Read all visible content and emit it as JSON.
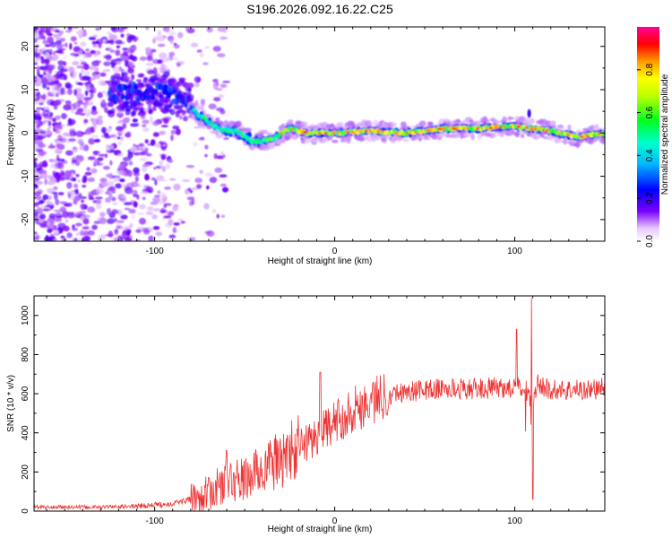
{
  "title": "S196.2026.092.16.22.C25",
  "chart_data": [
    {
      "type": "heatmap",
      "xlabel": "Height of straight line (km)",
      "ylabel": "Frequency (Hz)",
      "xlim": [
        -167,
        150
      ],
      "ylim": [
        -25,
        24.5
      ],
      "xticks": [
        -100,
        0,
        100
      ],
      "xtick_labels": [
        "-100",
        "0",
        "100"
      ],
      "yticks": [
        -20,
        -10,
        0,
        10,
        20
      ],
      "ytick_labels": [
        "-20",
        "-10",
        "0",
        "10",
        "20"
      ],
      "colorbar": {
        "label": "Normalized spectral amplitude",
        "range": [
          0,
          1
        ],
        "ticks": [
          0.0,
          0.2,
          0.4,
          0.6,
          0.8
        ],
        "tick_labels": [
          "0.0",
          "0.2",
          "0.4",
          "0.6",
          "0.8"
        ],
        "colormap": "rainbow (white-violet-blue-cyan-green-yellow-orange-red-magenta)"
      },
      "ridge": {
        "description": "dominant frequency trace vs height",
        "x": [
          -167,
          -120,
          -100,
          -85,
          -75,
          -65,
          -55,
          -45,
          -35,
          -25,
          -15,
          0,
          20,
          40,
          60,
          80,
          100,
          110,
          120,
          135,
          150
        ],
        "y": [
          0,
          9,
          10,
          8,
          4,
          1,
          0.5,
          -2,
          -1.5,
          1,
          0,
          0,
          0.5,
          0,
          1,
          1,
          1.5,
          1,
          0.5,
          -1,
          0
        ],
        "noise_region_x": [
          -167,
          -85
        ]
      }
    },
    {
      "type": "line",
      "xlabel": "Height of straight line (km)",
      "ylabel": "SNR (10 * v/v)",
      "xlim": [
        -167,
        150
      ],
      "ylim": [
        0,
        1100
      ],
      "xticks": [
        -100,
        0,
        100
      ],
      "xtick_labels": [
        "-100",
        "0",
        "100"
      ],
      "yticks": [
        0,
        200,
        400,
        600,
        800,
        1000
      ],
      "ytick_labels": [
        "0",
        "200",
        "400",
        "600",
        "800",
        "1000"
      ],
      "color": "#ee3333",
      "series": [
        {
          "name": "SNR",
          "x": [
            -167,
            -150,
            -130,
            -110,
            -100,
            -90,
            -80,
            -70,
            -60,
            -50,
            -40,
            -30,
            -20,
            -10,
            0,
            10,
            20,
            30,
            40,
            50,
            60,
            70,
            80,
            90,
            100,
            105,
            108,
            110,
            112,
            120,
            130,
            140,
            150
          ],
          "y": [
            20,
            20,
            20,
            25,
            30,
            40,
            60,
            90,
            150,
            160,
            220,
            260,
            330,
            380,
            450,
            520,
            560,
            600,
            610,
            620,
            625,
            625,
            625,
            630,
            630,
            630,
            600,
            500,
            650,
            620,
            620,
            620,
            630
          ],
          "spikes": [
            {
              "x": -60,
              "y": 310
            },
            {
              "x": -8,
              "y": 710
            },
            {
              "x": 101,
              "y": 930
            },
            {
              "x": 109,
              "y": 1090
            },
            {
              "x": 110,
              "y": 60
            }
          ]
        }
      ]
    }
  ]
}
